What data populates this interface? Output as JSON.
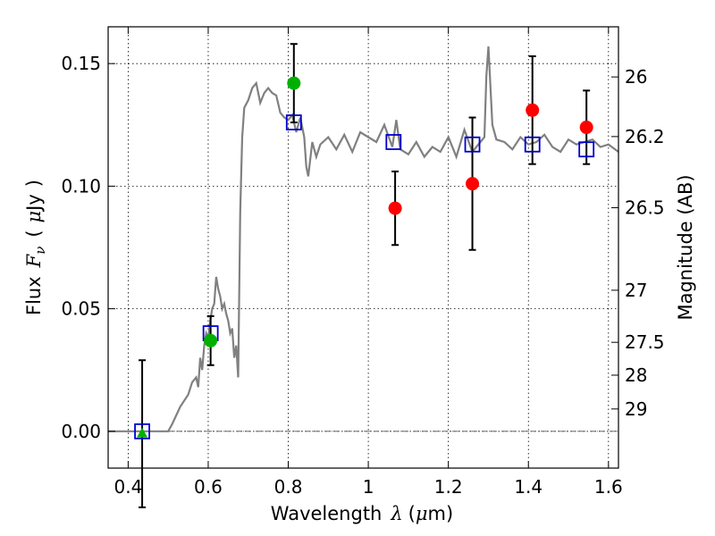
{
  "chart_data": {
    "type": "scatter",
    "xlabel": {
      "prefix": "Wavelength",
      "symbol": "λ",
      "open": "(",
      "unit_mu": "μ",
      "unit_rest": "m",
      "close": ")"
    },
    "ylabel": {
      "prefix": "Flux",
      "symbol": "F",
      "subscript": "ν",
      "open": "(",
      "unit_mu": "μ",
      "unit_rest": "Jy",
      "close": ")"
    },
    "y2label": "Magnitude (AB)",
    "xlim": [
      0.35,
      1.625
    ],
    "ylim": [
      -0.015,
      0.165
    ],
    "x_ticks": [
      {
        "value": 0.4,
        "label": "0.4"
      },
      {
        "value": 0.6,
        "label": "0.6"
      },
      {
        "value": 0.8,
        "label": "0.8"
      },
      {
        "value": 1.0,
        "label": "1"
      },
      {
        "value": 1.2,
        "label": "1.2"
      },
      {
        "value": 1.4,
        "label": "1.4"
      },
      {
        "value": 1.6,
        "label": "1.6"
      }
    ],
    "y_ticks": [
      {
        "value": 0.0,
        "label": "0.00"
      },
      {
        "value": 0.05,
        "label": "0.05"
      },
      {
        "value": 0.1,
        "label": "0.10"
      },
      {
        "value": 0.15,
        "label": "0.15"
      }
    ],
    "magnitude_ticks": [
      {
        "value": 26,
        "label": "26"
      },
      {
        "value": 26.2,
        "label": "26.2"
      },
      {
        "value": 26.5,
        "label": "26.5"
      },
      {
        "value": 27,
        "label": "27"
      },
      {
        "value": 27.5,
        "label": "27.5"
      },
      {
        "value": 28,
        "label": "28"
      },
      {
        "value": 29,
        "label": "29"
      }
    ],
    "grid": true,
    "zero_line": true,
    "colors": {
      "model": "#808080",
      "model_box": "#0000cc",
      "optical": "#00b000",
      "nir": "#ff0000",
      "error": "#000000",
      "zero_line": "#555555"
    },
    "series": [
      {
        "kind": "model_spectrum",
        "x": [
          0.35,
          0.5,
          0.51,
          0.53,
          0.55,
          0.56,
          0.57,
          0.575,
          0.58,
          0.585,
          0.59,
          0.595,
          0.6,
          0.605,
          0.61,
          0.615,
          0.62,
          0.625,
          0.63,
          0.635,
          0.64,
          0.645,
          0.65,
          0.655,
          0.66,
          0.665,
          0.67,
          0.675,
          0.68,
          0.685,
          0.69,
          0.7,
          0.71,
          0.72,
          0.73,
          0.735,
          0.74,
          0.75,
          0.76,
          0.77,
          0.78,
          0.79,
          0.8,
          0.81,
          0.82,
          0.83,
          0.84,
          0.845,
          0.85,
          0.86,
          0.87,
          0.88,
          0.9,
          0.92,
          0.94,
          0.96,
          0.98,
          1.0,
          1.02,
          1.04,
          1.06,
          1.07,
          1.08,
          1.1,
          1.12,
          1.14,
          1.16,
          1.18,
          1.2,
          1.22,
          1.24,
          1.26,
          1.28,
          1.29,
          1.295,
          1.3,
          1.31,
          1.32,
          1.34,
          1.36,
          1.38,
          1.4,
          1.42,
          1.44,
          1.46,
          1.48,
          1.5,
          1.52,
          1.54,
          1.56,
          1.58,
          1.6,
          1.625
        ],
        "y": [
          0.0,
          0.0,
          0.003,
          0.01,
          0.015,
          0.02,
          0.022,
          0.018,
          0.03,
          0.025,
          0.035,
          0.04,
          0.038,
          0.045,
          0.05,
          0.052,
          0.063,
          0.058,
          0.055,
          0.05,
          0.052,
          0.048,
          0.045,
          0.04,
          0.042,
          0.03,
          0.035,
          0.022,
          0.09,
          0.12,
          0.132,
          0.135,
          0.14,
          0.142,
          0.134,
          0.136,
          0.138,
          0.14,
          0.138,
          0.137,
          0.13,
          0.128,
          0.127,
          0.129,
          0.122,
          0.128,
          0.12,
          0.108,
          0.104,
          0.118,
          0.112,
          0.117,
          0.12,
          0.115,
          0.121,
          0.114,
          0.122,
          0.12,
          0.118,
          0.125,
          0.116,
          0.127,
          0.115,
          0.113,
          0.118,
          0.112,
          0.116,
          0.114,
          0.12,
          0.112,
          0.123,
          0.114,
          0.118,
          0.12,
          0.145,
          0.157,
          0.125,
          0.119,
          0.118,
          0.115,
          0.12,
          0.117,
          0.118,
          0.121,
          0.116,
          0.114,
          0.119,
          0.117,
          0.118,
          0.119,
          0.116,
          0.117,
          0.114
        ]
      },
      {
        "kind": "model_photometry",
        "x": [
          0.435,
          0.606,
          0.814,
          1.063,
          1.26,
          1.41,
          1.545
        ],
        "y": [
          0.0,
          0.04,
          0.126,
          0.118,
          0.117,
          0.117,
          0.115
        ]
      },
      {
        "kind": "observed_optical",
        "x": [
          0.435,
          0.606,
          0.814
        ],
        "y": [
          -0.001,
          0.037,
          0.142
        ],
        "err": [
          0.03,
          0.01,
          0.016
        ],
        "markers": [
          "triangle",
          "circle",
          "circle"
        ]
      },
      {
        "kind": "observed_nir",
        "x": [
          1.067,
          1.26,
          1.41,
          1.545
        ],
        "y": [
          0.091,
          0.101,
          0.131,
          0.124
        ],
        "err": [
          0.015,
          0.027,
          0.022,
          0.015
        ]
      }
    ]
  }
}
